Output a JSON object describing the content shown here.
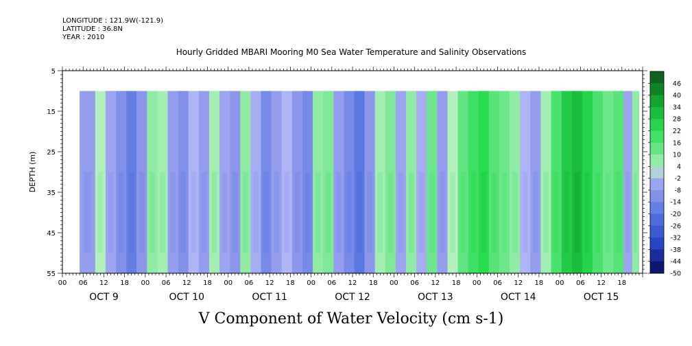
{
  "header": {
    "longitude": "LONGITUDE : 121.9W(-121.9)",
    "latitude": "LATITUDE : 36.8N",
    "year": "YEAR : 2010",
    "title": "Hourly Gridded MBARI Mooring M0 Sea Water Temperature and Salinity Observations"
  },
  "chart_data": {
    "type": "heatmap",
    "title": "Hourly Gridded MBARI Mooring M0 Sea Water Temperature and Salinity Observations",
    "xlabel": "V Component of Water Velocity (cm s-1)",
    "ylabel": "DEPTH (m)",
    "ylim": [
      55,
      5
    ],
    "y_ticks": [
      "5",
      "15",
      "25",
      "35",
      "45",
      "55"
    ],
    "x_range_hours": [
      0,
      168
    ],
    "x_hour_ticks": [
      "00",
      "06",
      "12",
      "18",
      "00",
      "06",
      "12",
      "18",
      "00",
      "06",
      "12",
      "18",
      "00",
      "06",
      "12",
      "18",
      "00",
      "06",
      "12",
      "18",
      "00",
      "06",
      "12",
      "18",
      "00",
      "06",
      "12",
      "18"
    ],
    "x_day_labels": [
      "OCT  9",
      "OCT 10",
      "OCT 11",
      "OCT 12",
      "OCT 13",
      "OCT 14",
      "OCT 15"
    ],
    "data_start_hour": 5,
    "data_end_hour": 167,
    "data_top_depth": 10,
    "data_bottom_depth": 55,
    "colorbar": {
      "levels": [
        "46",
        "40",
        "34",
        "28",
        "22",
        "16",
        "10",
        "4",
        "-2",
        "-8",
        "-14",
        "-20",
        "-26",
        "-32",
        "-38",
        "-44",
        "-50"
      ],
      "min": -50,
      "max": 50
    },
    "columns": [
      {
        "hour": 8,
        "v": -8
      },
      {
        "hour": 11,
        "v": 2
      },
      {
        "hour": 14,
        "v": -6
      },
      {
        "hour": 17,
        "v": -12
      },
      {
        "hour": 20,
        "v": -18
      },
      {
        "hour": 23,
        "v": -10
      },
      {
        "hour": 26,
        "v": 6
      },
      {
        "hour": 29,
        "v": 4
      },
      {
        "hour": 32,
        "v": -8
      },
      {
        "hour": 35,
        "v": -12
      },
      {
        "hour": 38,
        "v": -2
      },
      {
        "hour": 41,
        "v": -8
      },
      {
        "hour": 44,
        "v": 4
      },
      {
        "hour": 47,
        "v": -6
      },
      {
        "hour": 50,
        "v": -10
      },
      {
        "hour": 53,
        "v": 6
      },
      {
        "hour": 56,
        "v": -4
      },
      {
        "hour": 59,
        "v": -14
      },
      {
        "hour": 62,
        "v": -8
      },
      {
        "hour": 65,
        "v": -2
      },
      {
        "hour": 68,
        "v": -10
      },
      {
        "hour": 71,
        "v": -14
      },
      {
        "hour": 74,
        "v": 6
      },
      {
        "hour": 77,
        "v": 8
      },
      {
        "hour": 80,
        "v": -8
      },
      {
        "hour": 83,
        "v": -14
      },
      {
        "hour": 86,
        "v": -20
      },
      {
        "hour": 89,
        "v": -10
      },
      {
        "hour": 92,
        "v": 4
      },
      {
        "hour": 95,
        "v": 8
      },
      {
        "hour": 98,
        "v": -6
      },
      {
        "hour": 101,
        "v": 6
      },
      {
        "hour": 104,
        "v": -4
      },
      {
        "hour": 107,
        "v": 10
      },
      {
        "hour": 110,
        "v": -8
      },
      {
        "hour": 113,
        "v": 2
      },
      {
        "hour": 116,
        "v": 12
      },
      {
        "hour": 119,
        "v": 18
      },
      {
        "hour": 122,
        "v": 22
      },
      {
        "hour": 125,
        "v": 14
      },
      {
        "hour": 128,
        "v": 10
      },
      {
        "hour": 131,
        "v": 6
      },
      {
        "hour": 134,
        "v": -2
      },
      {
        "hour": 137,
        "v": -8
      },
      {
        "hour": 140,
        "v": 4
      },
      {
        "hour": 143,
        "v": 16
      },
      {
        "hour": 146,
        "v": 26
      },
      {
        "hour": 149,
        "v": 30
      },
      {
        "hour": 152,
        "v": 24
      },
      {
        "hour": 155,
        "v": 16
      },
      {
        "hour": 158,
        "v": 10
      },
      {
        "hour": 161,
        "v": 14
      },
      {
        "hour": 164,
        "v": -6
      },
      {
        "hour": 166,
        "v": 6
      }
    ],
    "grid": false,
    "legend_placement": "right"
  }
}
